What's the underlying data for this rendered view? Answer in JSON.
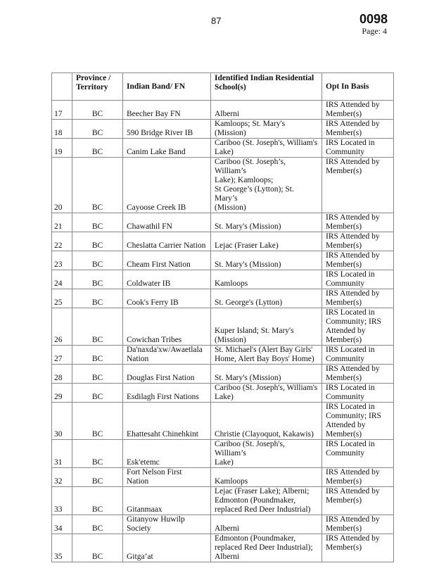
{
  "header": {
    "page_number": "87",
    "doc_id": "0098",
    "page_label": "Page:  4"
  },
  "table": {
    "columns": [
      "",
      "Province /\nTerritory",
      "Indian Band/ FN",
      "Identified Indian Residential\nSchool(s)",
      "Opt In Basis"
    ],
    "rows": [
      {
        "num": "17",
        "prov": "BC",
        "band": "Beecher Bay FN",
        "school": "Alberni",
        "basis": "IRS Attended by\nMember(s)",
        "h": 26
      },
      {
        "num": "18",
        "prov": "BC",
        "band": "590 Bridge River IB",
        "school": "Kamloops; St. Mary's (Mission)",
        "basis": "IRS Attended by\nMember(s)",
        "h": 26
      },
      {
        "num": "19",
        "prov": "BC",
        "band": "Canim Lake Band",
        "school": "Cariboo (St. Joseph's, William's\nLake)",
        "basis": "IRS Located in\nCommunity",
        "h": 26
      },
      {
        "num": "20",
        "prov": "BC",
        "band": "Cayoose Creek IB",
        "school": "Cariboo (St. Joseph’s, William’s\nLake); Kamloops;\nSt George’s (Lytton); St. Mary’s\n(Mission)",
        "basis": "IRS Attended by\nMember(s)",
        "h": 52
      },
      {
        "num": "21",
        "prov": "BC",
        "band": "Chawathil FN",
        "school": "St. Mary's (Mission)",
        "basis": "IRS Attended by\nMember(s)",
        "h": 26
      },
      {
        "num": "22",
        "prov": "BC",
        "band": "Cheslatta Carrier Nation",
        "school": "Lejac (Fraser Lake)",
        "basis": "IRS Attended by\nMember(s)",
        "h": 26
      },
      {
        "num": "23",
        "prov": "BC",
        "band": "Cheam First Nation",
        "school": "St. Mary's (Mission)",
        "basis": "IRS Attended by\nMember(s)",
        "h": 26
      },
      {
        "num": "24",
        "prov": "BC",
        "band": "Coldwater IB",
        "school": "Kamloops",
        "basis": "IRS Located in\nCommunity",
        "h": 26
      },
      {
        "num": "25",
        "prov": "BC",
        "band": "Cook's Ferry IB",
        "school": "St. George's (Lytton)",
        "basis": "IRS Attended by\nMember(s)",
        "h": 26
      },
      {
        "num": "26",
        "prov": "BC",
        "band": "Cowichan Tribes",
        "school": "Kuper Island; St. Mary's\n(Mission)",
        "basis": "IRS Located in\nCommunity; IRS\nAttended by Member(s)",
        "h": 39
      },
      {
        "num": "27",
        "prov": "BC",
        "band": "Da'naxda'xw/Awaetlala\nNation",
        "school": "St. Michael's (Alert Bay Girls'\nHome, Alert Bay Boys' Home)",
        "basis": "IRS Located in\nCommunity",
        "h": 26
      },
      {
        "num": "28",
        "prov": "BC",
        "band": "Douglas First Nation",
        "school": "St. Mary's (Mission)",
        "basis": "IRS Attended by\nMember(s)",
        "h": 26
      },
      {
        "num": "29",
        "prov": "BC",
        "band": "Esdilagh First Nations",
        "school": "Cariboo (St. Joseph's, William's\nLake)",
        "basis": "IRS Located in\nCommunity",
        "h": 26
      },
      {
        "num": "30",
        "prov": "BC",
        "band": "Ehattesaht Chinehkint",
        "school": "Christie (Clayoquot, Kakawis)",
        "basis": "IRS Located in\nCommunity; IRS\nAttended by Member(s)",
        "h": 39
      },
      {
        "num": "31",
        "prov": "BC",
        "band": "Esk'etemc",
        "school": "Cariboo (St. Joseph's, William’s\nLake)",
        "basis": "IRS Located in\nCommunity",
        "h": 26
      },
      {
        "num": "32",
        "prov": "BC",
        "band": "Fort Nelson First\nNation",
        "school": "Kamloops",
        "basis": "IRS Attended by\nMember(s)",
        "h": 26
      },
      {
        "num": "33",
        "prov": "BC",
        "band": "Gitanmaax",
        "school": "Lejac (Fraser Lake); Alberni;\nEdmonton (Poundmaker,\nreplaced Red Deer Industrial)",
        "basis": "IRS Attended by\nMember(s)",
        "h": 39
      },
      {
        "num": "34",
        "prov": "BC",
        "band": "Gitanyow Huwilp\nSociety",
        "school": "Alberni",
        "basis": "IRS Attended by\nMember(s)",
        "h": 26
      },
      {
        "num": "35",
        "prov": "BC",
        "band": "Gitga’at",
        "school": "Edmonton (Poundmaker,\nreplaced Red Deer Industrial);\nAlberni",
        "basis": "IRS Attended by\nMember(s)",
        "h": 39
      }
    ]
  }
}
